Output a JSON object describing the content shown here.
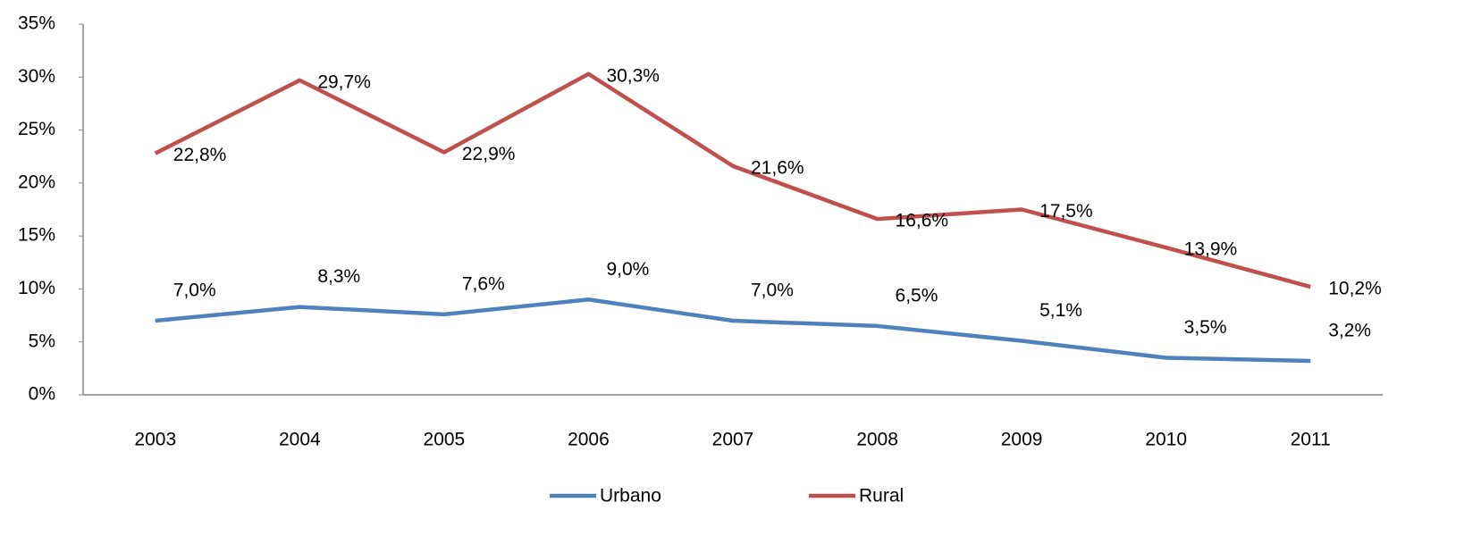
{
  "chart_data": {
    "type": "line",
    "categories": [
      "2003",
      "2004",
      "2005",
      "2006",
      "2007",
      "2008",
      "2009",
      "2010",
      "2011"
    ],
    "series": [
      {
        "name": "Urbano",
        "color": "#4f81bd",
        "values": [
          7.0,
          8.3,
          7.6,
          9.0,
          7.0,
          6.5,
          5.1,
          3.5,
          3.2
        ],
        "value_labels": [
          "7,0%",
          "8,3%",
          "7,6%",
          "9,0%",
          "7,0%",
          "6,5%",
          "5,1%",
          "3,5%",
          "3,2%"
        ]
      },
      {
        "name": "Rural",
        "color": "#c0504d",
        "values": [
          22.8,
          29.7,
          22.9,
          30.3,
          21.6,
          16.6,
          17.5,
          13.9,
          10.2
        ],
        "value_labels": [
          "22,8%",
          "29,7%",
          "22,9%",
          "30,3%",
          "21,6%",
          "16,6%",
          "17,5%",
          "13,9%",
          "10,2%"
        ]
      }
    ],
    "ylim": [
      0,
      35
    ],
    "yticks": [
      {
        "value": 0,
        "label": "0%"
      },
      {
        "value": 5,
        "label": "5%"
      },
      {
        "value": 10,
        "label": "10%"
      },
      {
        "value": 15,
        "label": "15%"
      },
      {
        "value": 20,
        "label": "20%"
      },
      {
        "value": 25,
        "label": "25%"
      },
      {
        "value": 30,
        "label": "30%"
      },
      {
        "value": 35,
        "label": "35%"
      }
    ],
    "grid": false,
    "legend": "bottom"
  }
}
